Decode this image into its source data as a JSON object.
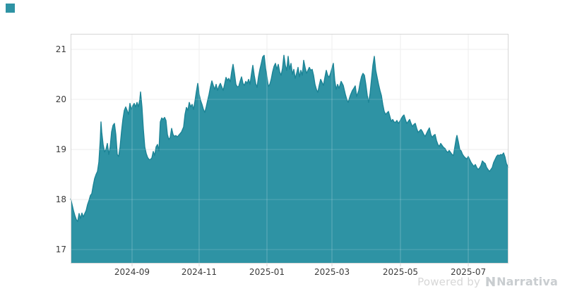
{
  "page": {
    "background": "#ffffff"
  },
  "swatch": {
    "color": "#2E93A4"
  },
  "watermark": {
    "powered_by": "Powered by",
    "brand": "Narrativa"
  },
  "colors": {
    "accent": "#2E93A4",
    "line": "#1C8496",
    "grid": "#e9e9e9",
    "grid_over_fill": "rgba(255,255,255,0.25)",
    "axis_border": "#d6d6d6",
    "tick_text": "#3b3b3b",
    "watermark_text": "#d3d6d8"
  },
  "chart_data": {
    "type": "area",
    "title": "",
    "xlabel": "",
    "ylabel": "",
    "legend": "none",
    "grid": "on",
    "view_range": [
      16.72,
      21.31
    ],
    "y_ticks": {
      "labels": [
        "21",
        "20",
        "19",
        "18",
        "17"
      ],
      "values": [
        21,
        20,
        19,
        18,
        17
      ]
    },
    "x_ticks": {
      "labels": [
        "2024-09",
        "2024-11",
        "2025-01",
        "2025-03",
        "2025-05",
        "2025-07"
      ],
      "fractions": [
        0.1403,
        0.2935,
        0.4484,
        0.5968,
        0.7532,
        0.9081
      ]
    },
    "series": [
      {
        "color": "#2E93A4",
        "line_color": "#1C8496",
        "points": [
          [
            100,
            18.02
          ],
          [
            102,
            17.9
          ],
          [
            104,
            17.78
          ],
          [
            106,
            17.68
          ],
          [
            108,
            17.6
          ],
          [
            110,
            17.56
          ],
          [
            112,
            17.72
          ],
          [
            114,
            17.62
          ],
          [
            116,
            17.73
          ],
          [
            118,
            17.65
          ],
          [
            120,
            17.72
          ],
          [
            122,
            17.78
          ],
          [
            124,
            17.9
          ],
          [
            126,
            17.98
          ],
          [
            128,
            18.08
          ],
          [
            130,
            18.12
          ],
          [
            132,
            18.28
          ],
          [
            134,
            18.42
          ],
          [
            136,
            18.5
          ],
          [
            138,
            18.56
          ],
          [
            140,
            18.75
          ],
          [
            142,
            19.2
          ],
          [
            143,
            19.55
          ],
          [
            144,
            19.35
          ],
          [
            146,
            19.1
          ],
          [
            148,
            18.95
          ],
          [
            150,
            19.0
          ],
          [
            152,
            19.12
          ],
          [
            154,
            18.9
          ],
          [
            156,
            19.05
          ],
          [
            158,
            19.35
          ],
          [
            160,
            19.48
          ],
          [
            162,
            19.52
          ],
          [
            164,
            19.3
          ],
          [
            166,
            18.9
          ],
          [
            168,
            18.86
          ],
          [
            170,
            19.05
          ],
          [
            172,
            19.35
          ],
          [
            174,
            19.6
          ],
          [
            176,
            19.78
          ],
          [
            178,
            19.85
          ],
          [
            180,
            19.78
          ],
          [
            182,
            19.7
          ],
          [
            184,
            19.92
          ],
          [
            186,
            19.8
          ],
          [
            188,
            19.87
          ],
          [
            190,
            19.92
          ],
          [
            192,
            19.85
          ],
          [
            194,
            19.94
          ],
          [
            196,
            19.85
          ],
          [
            198,
            20.0
          ],
          [
            199,
            20.15
          ],
          [
            201,
            19.85
          ],
          [
            203,
            19.4
          ],
          [
            205,
            19.05
          ],
          [
            207,
            18.92
          ],
          [
            209,
            18.84
          ],
          [
            211,
            18.8
          ],
          [
            213,
            18.8
          ],
          [
            215,
            18.83
          ],
          [
            217,
            18.96
          ],
          [
            219,
            18.88
          ],
          [
            221,
            19.05
          ],
          [
            223,
            19.1
          ],
          [
            225,
            18.97
          ],
          [
            227,
            19.55
          ],
          [
            229,
            19.63
          ],
          [
            231,
            19.6
          ],
          [
            233,
            19.64
          ],
          [
            235,
            19.58
          ],
          [
            237,
            19.3
          ],
          [
            239,
            19.2
          ],
          [
            241,
            19.24
          ],
          [
            243,
            19.42
          ],
          [
            245,
            19.3
          ],
          [
            247,
            19.26
          ],
          [
            249,
            19.28
          ],
          [
            251,
            19.25
          ],
          [
            254,
            19.3
          ],
          [
            257,
            19.35
          ],
          [
            260,
            19.45
          ],
          [
            262,
            19.7
          ],
          [
            264,
            19.84
          ],
          [
            266,
            19.78
          ],
          [
            268,
            19.94
          ],
          [
            270,
            19.85
          ],
          [
            272,
            19.9
          ],
          [
            274,
            19.8
          ],
          [
            276,
            19.96
          ],
          [
            278,
            20.15
          ],
          [
            280,
            20.32
          ],
          [
            282,
            20.1
          ],
          [
            284,
            19.98
          ],
          [
            286,
            19.9
          ],
          [
            288,
            19.8
          ],
          [
            290,
            19.74
          ],
          [
            292,
            19.85
          ],
          [
            294,
            19.98
          ],
          [
            296,
            20.1
          ],
          [
            298,
            20.25
          ],
          [
            300,
            20.37
          ],
          [
            302,
            20.28
          ],
          [
            304,
            20.2
          ],
          [
            306,
            20.3
          ],
          [
            308,
            20.18
          ],
          [
            310,
            20.26
          ],
          [
            312,
            20.32
          ],
          [
            314,
            20.25
          ],
          [
            316,
            20.18
          ],
          [
            318,
            20.3
          ],
          [
            320,
            20.44
          ],
          [
            322,
            20.38
          ],
          [
            324,
            20.42
          ],
          [
            326,
            20.35
          ],
          [
            328,
            20.55
          ],
          [
            330,
            20.7
          ],
          [
            332,
            20.52
          ],
          [
            334,
            20.3
          ],
          [
            336,
            20.25
          ],
          [
            338,
            20.26
          ],
          [
            340,
            20.36
          ],
          [
            342,
            20.45
          ],
          [
            344,
            20.32
          ],
          [
            346,
            20.28
          ],
          [
            348,
            20.36
          ],
          [
            350,
            20.32
          ],
          [
            352,
            20.4
          ],
          [
            354,
            20.3
          ],
          [
            356,
            20.5
          ],
          [
            358,
            20.68
          ],
          [
            360,
            20.48
          ],
          [
            362,
            20.32
          ],
          [
            364,
            20.24
          ],
          [
            366,
            20.45
          ],
          [
            368,
            20.6
          ],
          [
            370,
            20.72
          ],
          [
            372,
            20.85
          ],
          [
            374,
            20.88
          ],
          [
            376,
            20.62
          ],
          [
            378,
            20.45
          ],
          [
            380,
            20.26
          ],
          [
            382,
            20.3
          ],
          [
            384,
            20.4
          ],
          [
            386,
            20.55
          ],
          [
            388,
            20.66
          ],
          [
            390,
            20.72
          ],
          [
            392,
            20.6
          ],
          [
            394,
            20.7
          ],
          [
            396,
            20.55
          ],
          [
            398,
            20.48
          ],
          [
            400,
            20.62
          ],
          [
            402,
            20.88
          ],
          [
            404,
            20.68
          ],
          [
            406,
            20.58
          ],
          [
            408,
            20.86
          ],
          [
            410,
            20.6
          ],
          [
            412,
            20.72
          ],
          [
            414,
            20.5
          ],
          [
            416,
            20.6
          ],
          [
            418,
            20.42
          ],
          [
            420,
            20.52
          ],
          [
            422,
            20.64
          ],
          [
            424,
            20.45
          ],
          [
            426,
            20.58
          ],
          [
            428,
            20.48
          ],
          [
            430,
            20.78
          ],
          [
            432,
            20.64
          ],
          [
            434,
            20.52
          ],
          [
            436,
            20.58
          ],
          [
            438,
            20.64
          ],
          [
            440,
            20.58
          ],
          [
            442,
            20.6
          ],
          [
            444,
            20.48
          ],
          [
            446,
            20.3
          ],
          [
            448,
            20.2
          ],
          [
            450,
            20.14
          ],
          [
            452,
            20.28
          ],
          [
            454,
            20.4
          ],
          [
            456,
            20.34
          ],
          [
            458,
            20.28
          ],
          [
            460,
            20.44
          ],
          [
            462,
            20.58
          ],
          [
            464,
            20.48
          ],
          [
            466,
            20.44
          ],
          [
            468,
            20.52
          ],
          [
            470,
            20.62
          ],
          [
            472,
            20.72
          ],
          [
            474,
            20.38
          ],
          [
            476,
            20.2
          ],
          [
            478,
            20.3
          ],
          [
            480,
            20.22
          ],
          [
            483,
            20.36
          ],
          [
            486,
            20.28
          ],
          [
            489,
            20.1
          ],
          [
            491,
            20.0
          ],
          [
            493,
            19.94
          ],
          [
            496,
            20.08
          ],
          [
            499,
            20.18
          ],
          [
            501,
            20.22
          ],
          [
            503,
            20.27
          ],
          [
            505,
            20.06
          ],
          [
            508,
            20.18
          ],
          [
            510,
            20.34
          ],
          [
            512,
            20.46
          ],
          [
            514,
            20.52
          ],
          [
            516,
            20.48
          ],
          [
            518,
            20.3
          ],
          [
            520,
            20.08
          ],
          [
            522,
            19.94
          ],
          [
            524,
            20.12
          ],
          [
            526,
            20.4
          ],
          [
            528,
            20.68
          ],
          [
            530,
            20.86
          ],
          [
            532,
            20.58
          ],
          [
            534,
            20.44
          ],
          [
            536,
            20.3
          ],
          [
            538,
            20.18
          ],
          [
            540,
            20.08
          ],
          [
            542,
            19.9
          ],
          [
            544,
            19.76
          ],
          [
            546,
            19.7
          ],
          [
            548,
            19.73
          ],
          [
            550,
            19.76
          ],
          [
            552,
            19.66
          ],
          [
            554,
            19.56
          ],
          [
            556,
            19.6
          ],
          [
            558,
            19.55
          ],
          [
            560,
            19.54
          ],
          [
            562,
            19.58
          ],
          [
            564,
            19.52
          ],
          [
            566,
            19.56
          ],
          [
            568,
            19.61
          ],
          [
            570,
            19.66
          ],
          [
            572,
            19.69
          ],
          [
            574,
            19.6
          ],
          [
            576,
            19.52
          ],
          [
            578,
            19.56
          ],
          [
            580,
            19.6
          ],
          [
            582,
            19.52
          ],
          [
            584,
            19.46
          ],
          [
            586,
            19.5
          ],
          [
            588,
            19.52
          ],
          [
            590,
            19.42
          ],
          [
            592,
            19.34
          ],
          [
            594,
            19.37
          ],
          [
            596,
            19.4
          ],
          [
            598,
            19.36
          ],
          [
            600,
            19.3
          ],
          [
            602,
            19.26
          ],
          [
            604,
            19.32
          ],
          [
            606,
            19.38
          ],
          [
            608,
            19.43
          ],
          [
            610,
            19.3
          ],
          [
            612,
            19.24
          ],
          [
            614,
            19.28
          ],
          [
            616,
            19.3
          ],
          [
            618,
            19.18
          ],
          [
            620,
            19.1
          ],
          [
            622,
            19.06
          ],
          [
            624,
            19.12
          ],
          [
            626,
            19.08
          ],
          [
            628,
            19.04
          ],
          [
            630,
            19.02
          ],
          [
            632,
            18.97
          ],
          [
            634,
            18.94
          ],
          [
            636,
            18.98
          ],
          [
            638,
            18.94
          ],
          [
            640,
            18.9
          ],
          [
            642,
            18.88
          ],
          [
            644,
            19.05
          ],
          [
            646,
            19.22
          ],
          [
            647,
            19.28
          ],
          [
            649,
            19.15
          ],
          [
            651,
            19.0
          ],
          [
            653,
            18.97
          ],
          [
            655,
            18.9
          ],
          [
            657,
            18.86
          ],
          [
            659,
            18.83
          ],
          [
            661,
            18.81
          ],
          [
            663,
            18.86
          ],
          [
            665,
            18.8
          ],
          [
            667,
            18.74
          ],
          [
            669,
            18.7
          ],
          [
            671,
            18.66
          ],
          [
            673,
            18.7
          ],
          [
            675,
            18.64
          ],
          [
            677,
            18.6
          ],
          [
            679,
            18.63
          ],
          [
            681,
            18.68
          ],
          [
            683,
            18.77
          ],
          [
            685,
            18.74
          ],
          [
            687,
            18.72
          ],
          [
            689,
            18.64
          ],
          [
            691,
            18.6
          ],
          [
            693,
            18.56
          ],
          [
            695,
            18.6
          ],
          [
            697,
            18.64
          ],
          [
            699,
            18.74
          ],
          [
            701,
            18.8
          ],
          [
            703,
            18.86
          ],
          [
            705,
            18.89
          ],
          [
            707,
            18.88
          ],
          [
            709,
            18.9
          ],
          [
            711,
            18.89
          ],
          [
            713,
            18.93
          ],
          [
            715,
            18.85
          ],
          [
            717,
            18.72
          ],
          [
            719,
            18.66
          ],
          [
            720,
            18.64
          ]
        ]
      }
    ]
  }
}
